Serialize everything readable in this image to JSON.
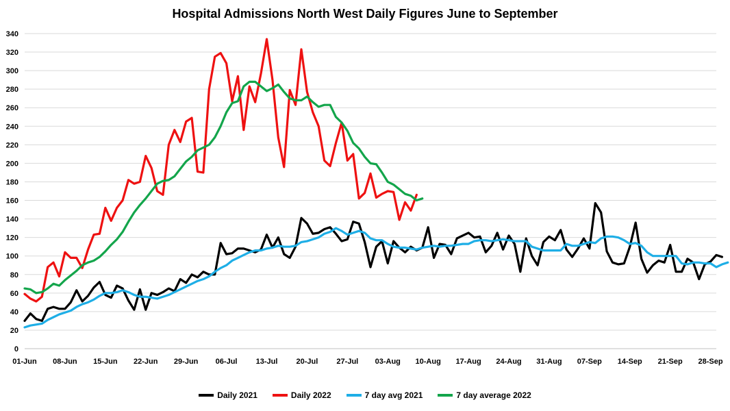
{
  "chart_data": {
    "type": "line",
    "title": "Hospital Admissions North West Daily Figures June to September",
    "xlabel": "",
    "ylabel": "",
    "ylim": [
      0,
      340
    ],
    "y_ticks": [
      0,
      20,
      40,
      60,
      80,
      100,
      120,
      140,
      160,
      180,
      200,
      220,
      240,
      260,
      280,
      300,
      320,
      340
    ],
    "x_tick_labels": [
      "01-Jun",
      "08-Jun",
      "15-Jun",
      "22-Jun",
      "29-Jun",
      "06-Jul",
      "13-Jul",
      "20-Jul",
      "27-Jul",
      "03-Aug",
      "10-Aug",
      "17-Aug",
      "24-Aug",
      "31-Aug",
      "07-Sep",
      "14-Sep",
      "21-Sep",
      "28-Sep"
    ],
    "x_tick_days": [
      0,
      7,
      14,
      21,
      28,
      35,
      42,
      49,
      56,
      63,
      70,
      77,
      84,
      91,
      98,
      105,
      112,
      119
    ],
    "x_range_days": [
      0,
      120
    ],
    "grid": "horizontal",
    "legend_position": "bottom",
    "series": [
      {
        "name": "Daily 2021",
        "color": "#000000",
        "values": [
          30,
          38,
          32,
          30,
          43,
          45,
          43,
          43,
          50,
          63,
          51,
          57,
          66,
          72,
          58,
          55,
          68,
          65,
          52,
          42,
          64,
          42,
          60,
          58,
          61,
          65,
          62,
          75,
          71,
          80,
          77,
          83,
          80,
          80,
          114,
          102,
          103,
          108,
          108,
          106,
          104,
          107,
          123,
          109,
          120,
          102,
          98,
          110,
          141,
          135,
          124,
          125,
          129,
          131,
          124,
          116,
          118,
          137,
          135,
          115,
          88,
          110,
          116,
          92,
          116,
          109,
          104,
          110,
          106,
          109,
          131,
          98,
          113,
          112,
          102,
          119,
          122,
          125,
          120,
          121,
          104,
          111,
          125,
          107,
          122,
          113,
          83,
          119,
          100,
          90,
          115,
          121,
          117,
          128,
          107,
          99,
          108,
          119,
          108,
          157,
          147,
          105,
          93,
          91,
          92,
          110,
          136,
          97,
          82,
          90,
          95,
          93,
          112,
          83,
          83,
          97,
          93,
          75,
          91,
          94,
          101,
          99
        ]
      },
      {
        "name": "Daily 2022",
        "color": "#ee1111",
        "values": [
          59,
          54,
          51,
          56,
          88,
          93,
          78,
          104,
          98,
          98,
          87,
          107,
          123,
          124,
          152,
          138,
          152,
          160,
          182,
          178,
          180,
          208,
          195,
          170,
          166,
          220,
          236,
          223,
          245,
          249,
          191,
          190,
          280,
          315,
          319,
          308,
          267,
          294,
          236,
          283,
          266,
          297,
          334,
          290,
          228,
          196,
          279,
          263,
          323,
          277,
          255,
          240,
          203,
          197,
          222,
          244,
          203,
          210,
          162,
          168,
          189,
          163,
          167,
          170,
          169,
          139,
          158,
          149,
          166
        ]
      },
      {
        "name": "7 day avg 2021",
        "color": "#1eaee6",
        "values": [
          23,
          25,
          26,
          27,
          31,
          34,
          37,
          39,
          41,
          45,
          48,
          50,
          53,
          57,
          60,
          60,
          61,
          63,
          61,
          58,
          56,
          56,
          55,
          54,
          56,
          58,
          61,
          64,
          67,
          70,
          73,
          75,
          78,
          83,
          87,
          90,
          95,
          98,
          101,
          104,
          106,
          106,
          108,
          109,
          111,
          110,
          110,
          111,
          115,
          116,
          118,
          120,
          124,
          126,
          130,
          127,
          123,
          125,
          127,
          125,
          119,
          117,
          117,
          113,
          110,
          109,
          109,
          108,
          107,
          109,
          110,
          111,
          110,
          111,
          111,
          112,
          113,
          113,
          116,
          117,
          117,
          116,
          117,
          118,
          117,
          116,
          116,
          116,
          110,
          108,
          106,
          106,
          106,
          106,
          113,
          111,
          111,
          113,
          115,
          114,
          119,
          121,
          121,
          120,
          117,
          113,
          114,
          111,
          104,
          100,
          100,
          100,
          100,
          100,
          92,
          91,
          93,
          93,
          92,
          92,
          88,
          91,
          93
        ]
      },
      {
        "name": "7 day average 2022",
        "color": "#13a54b",
        "values": [
          65,
          64,
          60,
          61,
          65,
          70,
          68,
          74,
          79,
          84,
          90,
          93,
          95,
          99,
          105,
          112,
          118,
          126,
          137,
          147,
          155,
          162,
          170,
          178,
          181,
          182,
          186,
          194,
          202,
          207,
          214,
          217,
          220,
          228,
          240,
          255,
          265,
          267,
          283,
          288,
          288,
          283,
          278,
          281,
          285,
          277,
          270,
          268,
          268,
          272,
          266,
          261,
          263,
          263,
          250,
          244,
          235,
          222,
          216,
          207,
          200,
          199,
          190,
          180,
          177,
          172,
          167,
          165,
          160,
          162
        ]
      }
    ]
  }
}
